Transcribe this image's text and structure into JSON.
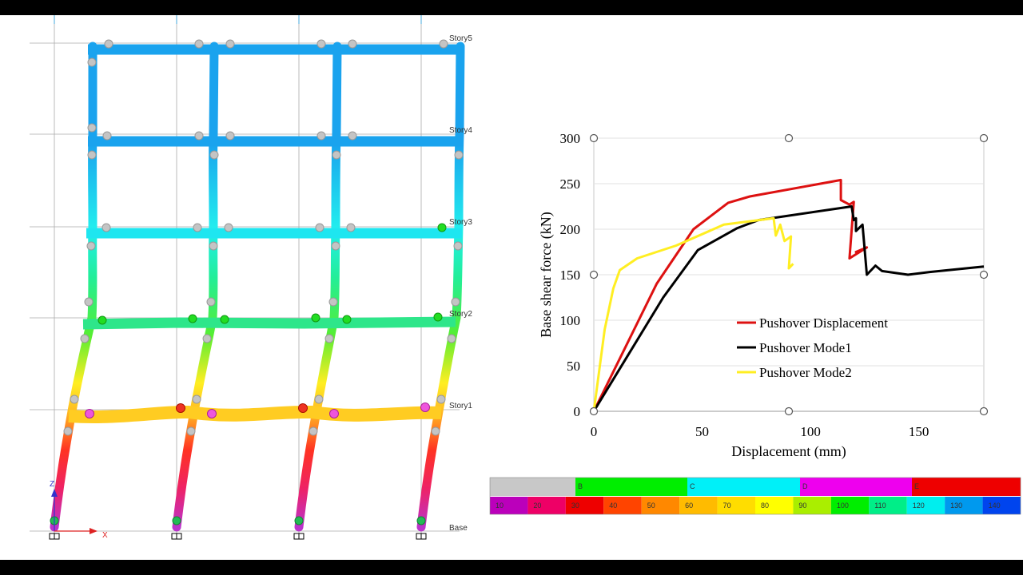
{
  "model": {
    "story_labels": [
      "Story5",
      "Story4",
      "Story3",
      "Story2",
      "Story1",
      "Base"
    ],
    "axis_labels": {
      "vertical": "Z",
      "horizontal": "X"
    },
    "colors": {
      "beam_story5": "#1aa3ee",
      "beam_story4": "#1aa3ee",
      "beam_story3": "#1ee6f0",
      "beam_story2": "#2ee68a",
      "beam_story1": "#ffcc22",
      "hinge_grey": "#c4c4c4",
      "hinge_green": "#22dd22",
      "hinge_red": "#ee3322",
      "hinge_magenta": "#ee55dd",
      "grid_line": "#aaaaaa"
    }
  },
  "chart_data": {
    "type": "line",
    "title": "",
    "xlabel": "Displacement (mm)",
    "ylabel": "Base shear force (kN)",
    "xlim": [
      0,
      180
    ],
    "ylim": [
      0,
      300
    ],
    "xticks": [
      0,
      50,
      100,
      150
    ],
    "yticks": [
      0,
      50,
      100,
      150,
      200,
      250,
      300
    ],
    "grid": "horizontal",
    "legend_position": "center",
    "series": [
      {
        "name": "Pushover Displacement",
        "color": "#dd1111",
        "points": [
          [
            0,
            0
          ],
          [
            29,
            140
          ],
          [
            46,
            200
          ],
          [
            62,
            229
          ],
          [
            72,
            236
          ],
          [
            114,
            254
          ],
          [
            114,
            232
          ],
          [
            118,
            227
          ],
          [
            120,
            230
          ],
          [
            118,
            168
          ],
          [
            126,
            180
          ],
          [
            121,
            175
          ],
          [
            126,
            180
          ]
        ]
      },
      {
        "name": "Pushover Mode1",
        "color": "#000000",
        "points": [
          [
            0,
            0
          ],
          [
            32,
            125
          ],
          [
            48,
            177
          ],
          [
            66,
            201
          ],
          [
            76,
            210
          ],
          [
            119,
            225
          ],
          [
            120,
            210
          ],
          [
            121,
            212
          ],
          [
            121,
            198
          ],
          [
            124,
            205
          ],
          [
            126,
            150
          ],
          [
            130,
            160
          ],
          [
            133,
            154
          ],
          [
            145,
            150
          ],
          [
            155,
            153
          ],
          [
            180,
            159
          ]
        ]
      },
      {
        "name": "Pushover Mode2",
        "color": "#ffee22",
        "points": [
          [
            0,
            0
          ],
          [
            5,
            90
          ],
          [
            9,
            135
          ],
          [
            12,
            155
          ],
          [
            20,
            168
          ],
          [
            38,
            182
          ],
          [
            60,
            205
          ],
          [
            83,
            212
          ],
          [
            84,
            193
          ],
          [
            86,
            205
          ],
          [
            88,
            187
          ],
          [
            91,
            192
          ],
          [
            90,
            157
          ],
          [
            92,
            162
          ]
        ]
      }
    ]
  },
  "color_scale": {
    "top_row": [
      {
        "label": "",
        "color": "#c8c8c8"
      },
      {
        "label": "B",
        "color": "#00ee00"
      },
      {
        "label": "C",
        "color": "#00f0f8"
      },
      {
        "label": "D",
        "color": "#ee00ee"
      },
      {
        "label": "E",
        "color": "#ee0000"
      }
    ],
    "bottom_row": [
      {
        "label": "10",
        "color": "#bb00bb"
      },
      {
        "label": "20",
        "color": "#ee0066"
      },
      {
        "label": "30",
        "color": "#ee0000"
      },
      {
        "label": "40",
        "color": "#ff4400"
      },
      {
        "label": "50",
        "color": "#ff8800"
      },
      {
        "label": "60",
        "color": "#ffbb00"
      },
      {
        "label": "70",
        "color": "#ffdd00"
      },
      {
        "label": "80",
        "color": "#ffff00"
      },
      {
        "label": "90",
        "color": "#aaee00"
      },
      {
        "label": "100",
        "color": "#00ee00"
      },
      {
        "label": "110",
        "color": "#00ee88"
      },
      {
        "label": "120",
        "color": "#00eeee"
      },
      {
        "label": "130",
        "color": "#0099ee"
      },
      {
        "label": "140",
        "color": "#0044ee"
      }
    ]
  }
}
